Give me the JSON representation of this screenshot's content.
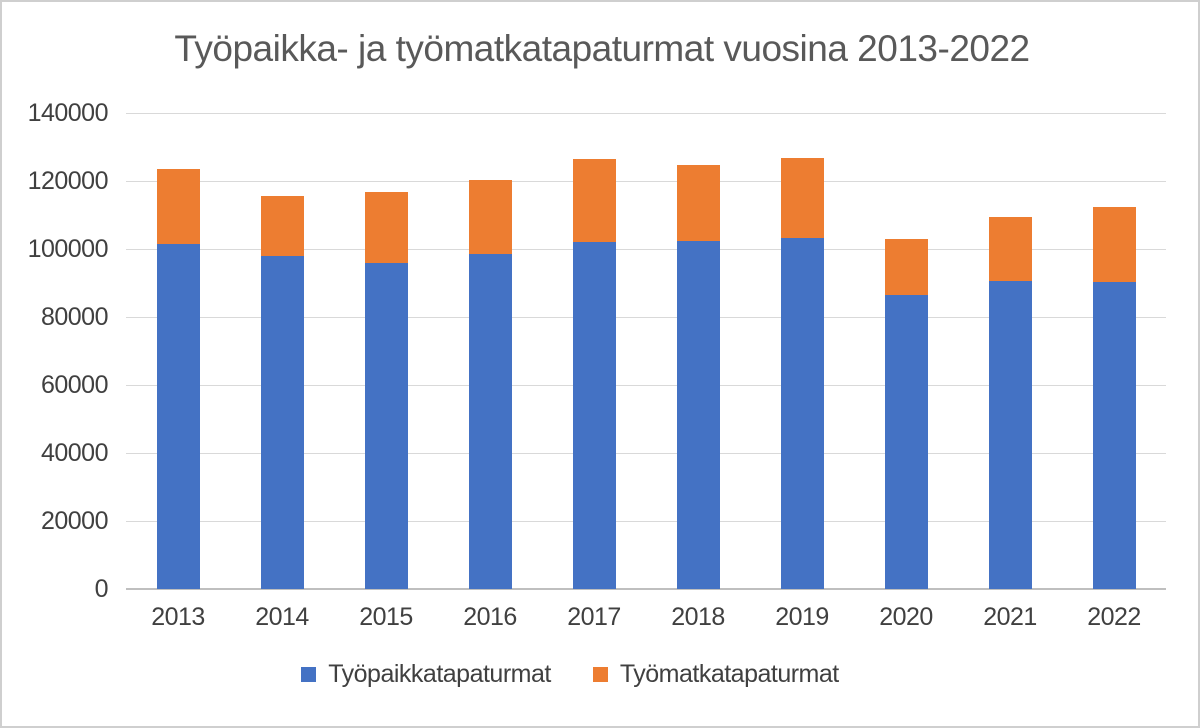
{
  "chart_data": {
    "type": "bar",
    "stacked": true,
    "title": "Työpaikka- ja työmatkatapaturmat vuosina 2013-2022",
    "categories": [
      "2013",
      "2014",
      "2015",
      "2016",
      "2017",
      "2018",
      "2019",
      "2020",
      "2021",
      "2022"
    ],
    "series": [
      {
        "name": "Työpaikkatapaturmat",
        "color": "#4472C4",
        "values": [
          101500,
          98000,
          96000,
          98400,
          102000,
          102300,
          103300,
          86500,
          90700,
          90300
        ]
      },
      {
        "name": "Työmatkatapaturmat",
        "color": "#ED7D31",
        "values": [
          21900,
          17700,
          20700,
          21800,
          24500,
          22300,
          23600,
          16400,
          18800,
          22200
        ]
      }
    ],
    "xlabel": "",
    "ylabel": "",
    "ylim": [
      0,
      140000
    ],
    "ytick_step": 20000,
    "yticks": [
      "0",
      "20000",
      "40000",
      "60000",
      "80000",
      "100000",
      "120000",
      "140000"
    ],
    "grid": true,
    "gridline_color": "#d9d9d9",
    "axis_line_color": "#bfbfbf",
    "tick_label_color": "#404040",
    "title_color": "#595959",
    "legend_position": "bottom"
  }
}
